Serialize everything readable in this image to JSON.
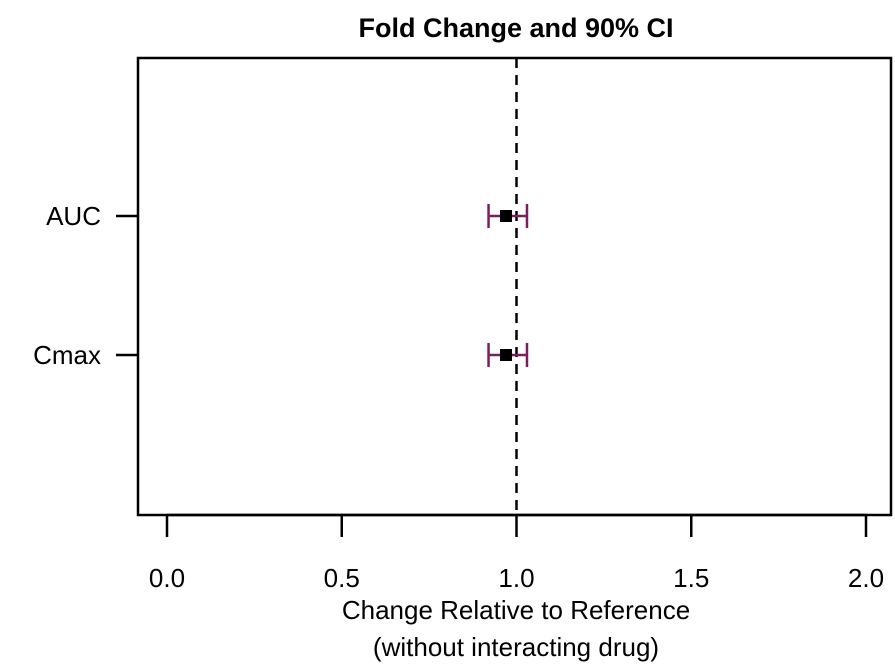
{
  "chart_data": {
    "type": "forest",
    "title": "Fold Change and 90% CI",
    "xlabel_line1": "Change Relative to Reference",
    "xlabel_line2": "(without interacting drug)",
    "ylabel": "",
    "xlim": [
      0.0,
      2.0
    ],
    "xticks": [
      "0.0",
      "0.5",
      "1.0",
      "1.5",
      "2.0"
    ],
    "reference_line": 1.0,
    "reference_line_style": "dashed",
    "ci_color": "#7a1f5c",
    "grid": false,
    "legend": "none",
    "series": [
      {
        "label": "AUC",
        "estimate": 0.97,
        "lower": 0.92,
        "upper": 1.03
      },
      {
        "label": "Cmax",
        "estimate": 0.97,
        "lower": 0.92,
        "upper": 1.03
      }
    ]
  }
}
